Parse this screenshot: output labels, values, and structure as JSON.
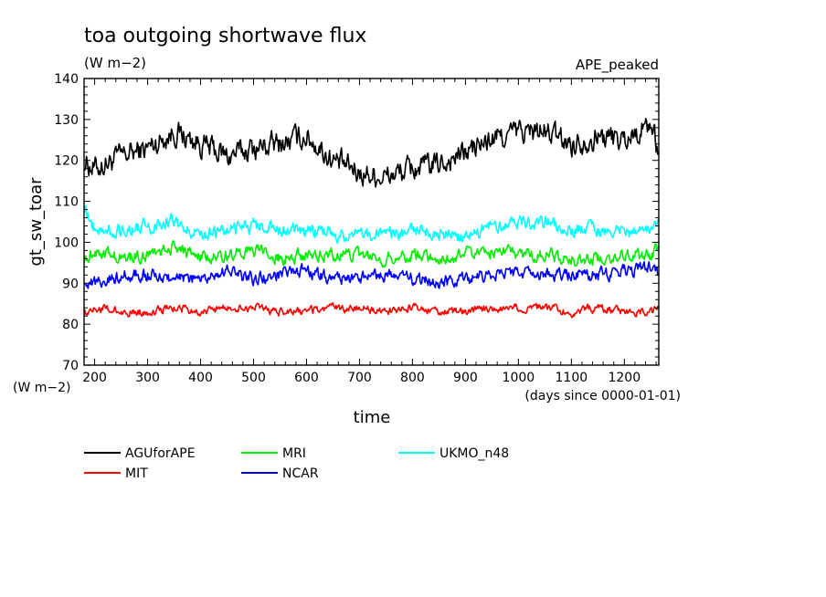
{
  "title": "toa outgoing shortwave flux",
  "subtitle": "(W m−2)",
  "experiment": "APE_peaked",
  "chart_data": {
    "type": "line",
    "xlabel": "time",
    "xunit": "(days since 0000-01-01)",
    "ylabel": "gt_sw_toar",
    "yunit": "(W m−2)",
    "xlim": [
      180,
      1265
    ],
    "ylim": [
      70,
      140
    ],
    "xticks": [
      200,
      300,
      400,
      500,
      600,
      700,
      800,
      900,
      1000,
      1100,
      1200
    ],
    "yticks": [
      70,
      80,
      90,
      100,
      110,
      120,
      130,
      140
    ],
    "x": [
      180,
      200,
      250,
      300,
      350,
      400,
      450,
      500,
      550,
      600,
      650,
      700,
      750,
      800,
      850,
      900,
      950,
      1000,
      1050,
      1100,
      1150,
      1200,
      1250,
      1265
    ],
    "series": [
      {
        "name": "AGUforAPE",
        "color": "#000000",
        "values": [
          120,
          118,
          121,
          123,
          127,
          124,
          121,
          123,
          124,
          126,
          120,
          117,
          116,
          118,
          119,
          122,
          125,
          127,
          127,
          124,
          126,
          125,
          129,
          122
        ]
      },
      {
        "name": "MIT",
        "color": "#ff0000",
        "values": [
          83,
          84,
          83,
          83,
          84,
          83,
          84,
          84,
          83,
          83,
          84,
          84,
          83,
          84,
          83,
          83,
          84,
          84,
          84,
          83,
          84,
          83,
          83,
          84
        ]
      },
      {
        "name": "MRI",
        "color": "#00ee00",
        "values": [
          96,
          98,
          96,
          97,
          99,
          96,
          97,
          98,
          96,
          97,
          97,
          97,
          96,
          97,
          96,
          97,
          98,
          97,
          97,
          96,
          96,
          97,
          97,
          99
        ]
      },
      {
        "name": "NCAR",
        "color": "#0000ff",
        "values": [
          91,
          90,
          92,
          92,
          91,
          91,
          93,
          91,
          92,
          93,
          91,
          91,
          92,
          91,
          90,
          91,
          92,
          93,
          92,
          92,
          92,
          93,
          94,
          92
        ]
      },
      {
        "name": "UKMO_n48",
        "color": "#00ffff",
        "values": [
          108,
          103,
          103,
          104,
          105,
          102,
          103,
          104,
          103,
          103,
          102,
          102,
          102,
          103,
          102,
          101,
          104,
          105,
          105,
          103,
          103,
          102,
          103,
          105
        ]
      }
    ],
    "grid": false,
    "legend_position": "bottom-left"
  }
}
